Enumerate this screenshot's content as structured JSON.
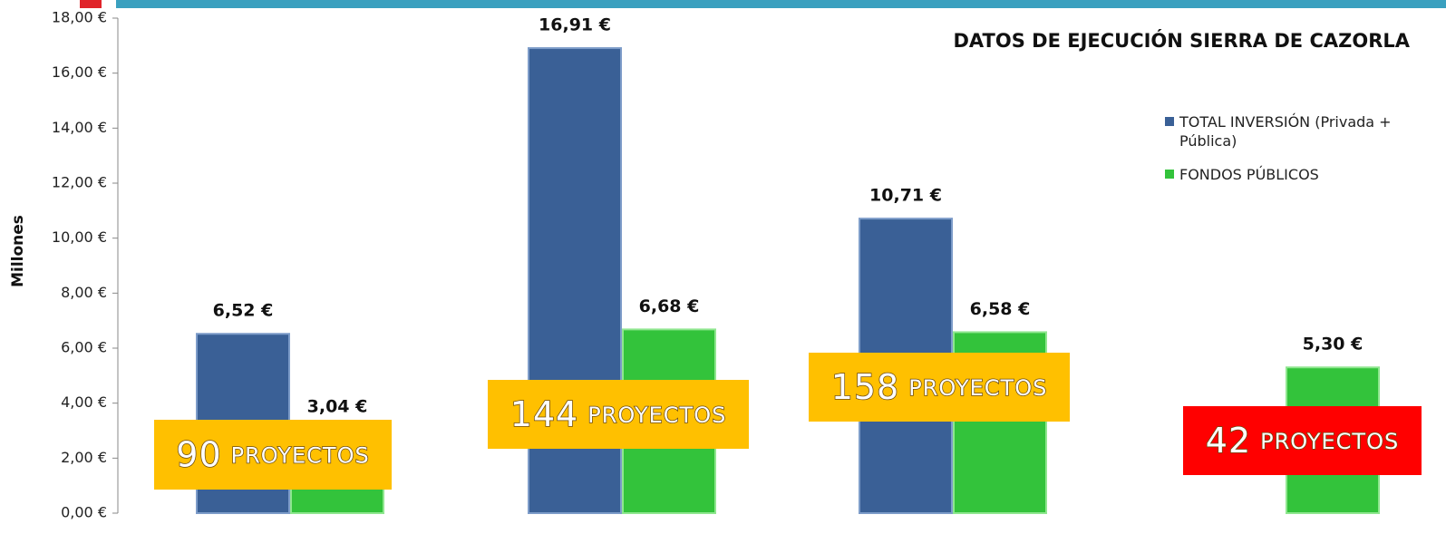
{
  "chart_data": {
    "type": "bar",
    "title": "DATOS DE EJECUCIÓN SIERRA DE CAZORLA",
    "y_label": "Millones",
    "categories": [
      null,
      null,
      null,
      null
    ],
    "series": [
      {
        "name": "TOTAL INVERSIÓN (Privada + Pública)",
        "color": "#3a6096",
        "values": [
          6.52,
          16.91,
          10.71,
          null
        ],
        "value_labels": [
          "6,52 €",
          "16,91 €",
          "10,71 €",
          null
        ]
      },
      {
        "name": "FONDOS PÚBLICOS",
        "color": "#33c33b",
        "values": [
          3.04,
          6.68,
          6.58,
          5.3
        ],
        "value_labels": [
          "3,04 €",
          "6,68 €",
          "6,58 €",
          "5,30 €"
        ]
      }
    ],
    "ylim": [
      0,
      18
    ],
    "yticks": [
      {
        "value": 0,
        "label": "0,00 €"
      },
      {
        "value": 2,
        "label": "2,00 €"
      },
      {
        "value": 4,
        "label": "4,00 €"
      },
      {
        "value": 6,
        "label": "6,00 €"
      },
      {
        "value": 8,
        "label": "8,00 €"
      },
      {
        "value": 10,
        "label": "10,00 €"
      },
      {
        "value": 12,
        "label": "12,00 €"
      },
      {
        "value": 14,
        "label": "14,00 €"
      },
      {
        "value": 16,
        "label": "16,00 €"
      },
      {
        "value": 18,
        "label": "18,00 €"
      }
    ],
    "legend": "right",
    "annotations": [
      {
        "number": "90",
        "text": "PROYECTOS",
        "color": "#ffc000"
      },
      {
        "number": "144",
        "text": "PROYECTOS",
        "color": "#ffc000"
      },
      {
        "number": "158",
        "text": "PROYECTOS",
        "color": "#ffc000"
      },
      {
        "number": "42",
        "text": "PROYECTOS",
        "color": "#ff0000"
      }
    ]
  }
}
